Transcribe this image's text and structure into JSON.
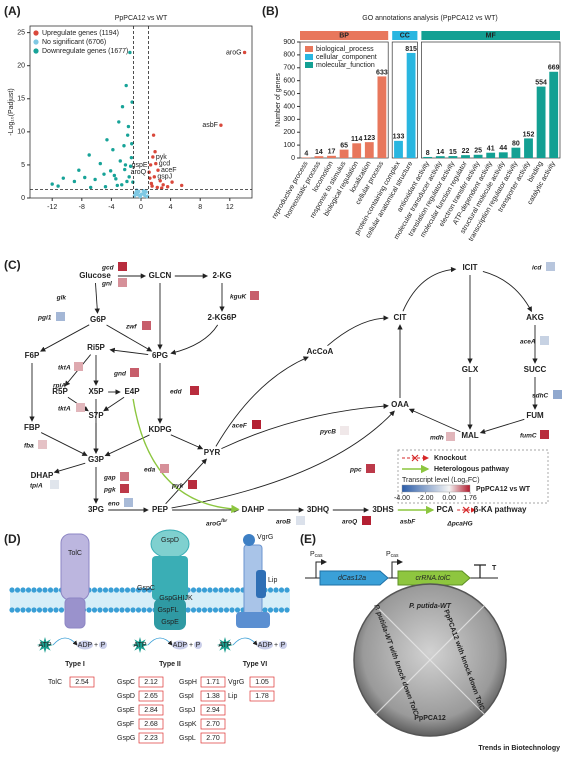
{
  "panel_labels": [
    "(A)",
    "(B)",
    "(C)",
    "(D)",
    "(E)"
  ],
  "chart_data": [
    {
      "type": "scatter",
      "title": "PpPCA12 vs WT",
      "y_label": "-Log₁₀(Padjust)",
      "xlim": [
        -15,
        15
      ],
      "xticks": [
        -12,
        -8,
        -4,
        0,
        4,
        8,
        12
      ],
      "ylim": [
        0,
        26
      ],
      "yticks": [
        0,
        5,
        10,
        15,
        20,
        25
      ],
      "thresholds": {
        "x": [
          -1,
          1
        ],
        "y": 1.3
      },
      "series": [
        {
          "name": "Upregulate genes (1194)",
          "color": "#d9483b",
          "x": [
            14,
            10.8,
            1.6,
            2,
            2.3,
            1.8,
            2.6,
            1.4,
            1.2,
            1.5,
            2.2,
            3,
            4.2,
            5.5,
            1.3,
            1.9,
            1.1,
            2.8,
            3.6,
            1.7
          ],
          "values": [
            22,
            11,
            6.2,
            5.2,
            4.2,
            3.2,
            2.6,
            2.2,
            3,
            1.8,
            1.6,
            2,
            2.4,
            1.9,
            5,
            7,
            3.9,
            1.5,
            1.7,
            9.5
          ],
          "labels": [
            "aroG",
            "asbF",
            "pyk",
            "gcd",
            "aceF",
            "gspJ",
            null,
            null,
            null,
            null,
            null,
            null,
            null,
            null,
            "gspE",
            null,
            "aroQ",
            null,
            null,
            null
          ]
        },
        {
          "name": "No significant (6706)",
          "color": "#7ec8e3",
          "x": [
            -0.9,
            -0.7,
            -0.5,
            -0.3,
            -0.1,
            0.1,
            0.3,
            0.5,
            0.7,
            0.9,
            -0.6,
            0.4,
            -0.2,
            0.6,
            0.0,
            -0.8,
            0.8,
            -0.4
          ],
          "values": [
            0.3,
            0.8,
            0.5,
            1.0,
            0.2,
            0.6,
            1.1,
            0.4,
            0.9,
            0.3,
            1.2,
            0.7,
            0.4,
            1.0,
            0.5,
            0.6,
            0.2,
            0.9
          ]
        },
        {
          "name": "Downregulate genes (1677)",
          "color": "#17a398",
          "x": [
            -12,
            -11.2,
            -10.5,
            -9,
            -8.4,
            -7.6,
            -7,
            -6.2,
            -5.5,
            -5,
            -4.6,
            -4.1,
            -3.8,
            -3.4,
            -3,
            -2.8,
            -2.5,
            -2.2,
            -2,
            -1.8,
            -1.6,
            -1.5,
            -1.3,
            -1.2,
            -1.1,
            -2.6,
            -3.2,
            -1.9,
            -1.4,
            -4.8,
            -6.8,
            -2.3,
            -1.7,
            -3.6,
            -1.25,
            -2.1
          ],
          "values": [
            2.1,
            1.8,
            3,
            2.5,
            4.2,
            3.1,
            6.5,
            2.8,
            5.2,
            3.6,
            8.8,
            4.1,
            7.3,
            2.9,
            11.5,
            5.6,
            13.8,
            4.3,
            17,
            9.5,
            3.2,
            22,
            6.1,
            14.5,
            2.4,
            2,
            1.9,
            2.5,
            4.8,
            1.7,
            1.6,
            7.9,
            10.8,
            3.4,
            8.2,
            5
          ]
        }
      ]
    },
    {
      "type": "bar",
      "title": "GO annotations analysis (PpPCA12 vs WT)",
      "y_label": "Number of genes",
      "ylim": [
        0,
        900
      ],
      "yticks": [
        0,
        100,
        200,
        300,
        400,
        500,
        600,
        700,
        800,
        900
      ],
      "series": [
        {
          "label": "BP",
          "name": "biological_process",
          "color": "#e8775c",
          "categories": [
            "reproductive process",
            "homeostatic process",
            "locomotion",
            "response to stimulus",
            "biological regulation",
            "localization",
            "cellular process"
          ],
          "values": [
            4,
            14,
            17,
            65,
            114,
            123,
            633
          ]
        },
        {
          "label": "CC",
          "name": "cellular_component",
          "color": "#29b6e0",
          "categories": [
            "protein-containing complex",
            "cellular anatomical structure"
          ],
          "values": [
            133,
            815
          ]
        },
        {
          "label": "MF",
          "name": "molecular_function",
          "color": "#13a093",
          "categories": [
            "antioxidant activity",
            "molecular transducer activity",
            "translation regulator activity",
            "molecular function regulator",
            "electron transfer activity",
            "ATP-dependent activity",
            "structural molecule activity",
            "transcription regulator activity",
            "transporter activity",
            "binding",
            "catalytic activity"
          ],
          "values": [
            8,
            14,
            15,
            22,
            25,
            41,
            44,
            80,
            152,
            554,
            669
          ]
        }
      ]
    }
  ],
  "pathway": {
    "metabolites": [
      "Glucose",
      "GLCN",
      "2-KG",
      "2-KG6P",
      "G6P",
      "6PG",
      "F6P",
      "Ri5P",
      "R5P",
      "X5P",
      "E4P",
      "S7P",
      "KDPG",
      "FBP",
      "G3P",
      "DHAP",
      "3PG",
      "PEP",
      "PYR",
      "AcCoA",
      "CIT",
      "ICIT",
      "AKG",
      "GLX",
      "SUCC",
      "OAA",
      "MAL",
      "FUM",
      "DAHP",
      "3DHQ",
      "3DHS",
      "PCA"
    ],
    "end_product": "β-KA pathway",
    "genes": [
      {
        "name": "gcd",
        "value": 1.6
      },
      {
        "name": "gnl",
        "value": 0.8
      },
      {
        "name": "zwf",
        "value": 1.2
      },
      {
        "name": "kguK",
        "value": 1.2
      },
      {
        "name": "pgi1",
        "value": -1.6
      },
      {
        "name": "tktA",
        "value": 0.6
      },
      {
        "name": "gnd",
        "value": 1.2
      },
      {
        "name": "tktA",
        "value": 0.5
      },
      {
        "name": "edd",
        "value": 1.6
      },
      {
        "name": "aceF",
        "value": 1.7
      },
      {
        "name": "fba",
        "value": 0.4
      },
      {
        "name": "tpiA",
        "value": -0.4
      },
      {
        "name": "eda",
        "value": 0.8
      },
      {
        "name": "gap",
        "value": 1.0
      },
      {
        "name": "pgk",
        "value": 1.5
      },
      {
        "name": "eno",
        "value": -1.5
      },
      {
        "name": "pyk",
        "value": 1.6
      },
      {
        "name": "pycB",
        "value": 0.1
      },
      {
        "name": "icd",
        "value": -1.2
      },
      {
        "name": "aceA",
        "value": -0.9
      },
      {
        "name": "sdhC",
        "value": -2
      },
      {
        "name": "mdh",
        "value": 0.5
      },
      {
        "name": "fumC",
        "value": 1.6
      },
      {
        "name": "ppc",
        "value": 1.5
      },
      {
        "name": "aroB",
        "value": -0.5
      },
      {
        "name": "aroQ",
        "value": 1.7
      }
    ],
    "unmeasured_genes": [
      "glk",
      "rpiA"
    ],
    "heterologous": [
      {
        "name": "aroG",
        "superscript": "fbr"
      },
      {
        "name": "asbF"
      }
    ],
    "knockout": "ΔpcaHG",
    "legend": {
      "knockout": "Knockout",
      "heterologous": "Heterologous pathway",
      "colorbar_title": "Transcript level (Log₂FC)",
      "comparison": "PpPCA12 vs WT",
      "clim": [
        -4,
        1.76
      ],
      "color_stops": [
        -4,
        0,
        1.76
      ],
      "colors": [
        "#2b5ca8",
        "#f4f4f4",
        "#b2182b"
      ],
      "ticks": [
        {
          "value": -4,
          "label": "-4.00"
        },
        {
          "value": -2,
          "label": "-2.00"
        },
        {
          "value": 0,
          "label": "0.00"
        },
        {
          "value": 1.76,
          "label": "1.76"
        }
      ]
    }
  },
  "secretion": {
    "systems": [
      {
        "name": "Type I",
        "components": [
          "TolC"
        ],
        "genes": [
          {
            "name": "TolC",
            "value": "2.54"
          }
        ]
      },
      {
        "name": "Type II",
        "components": [
          "GspD",
          "GspC",
          "GspGHIJK",
          "GspFL",
          "GspE"
        ],
        "genes": [
          {
            "name": "GspC",
            "value": "2.12"
          },
          {
            "name": "GspD",
            "value": "2.65"
          },
          {
            "name": "GspE",
            "value": "2.84"
          },
          {
            "name": "GspF",
            "value": "2.68"
          },
          {
            "name": "GspG",
            "value": "2.23"
          },
          {
            "name": "GspH",
            "value": "1.71"
          },
          {
            "name": "GspI",
            "value": "1.38"
          },
          {
            "name": "GspJ",
            "value": "2.94"
          },
          {
            "name": "GspK",
            "value": "2.70"
          },
          {
            "name": "GspL",
            "value": "2.70"
          }
        ]
      },
      {
        "name": "Type VI",
        "components": [
          "VgrG",
          "Lip"
        ],
        "genes": [
          {
            "name": "VgrG",
            "value": "1.05"
          },
          {
            "name": "Lip",
            "value": "1.78"
          }
        ]
      }
    ],
    "molecules": [
      "ATP",
      "ADP",
      "P"
    ]
  },
  "crispr": {
    "promoters": [
      {
        "text": "P",
        "sub": "cas"
      },
      {
        "text": "P",
        "sub": "cas"
      }
    ],
    "genes": [
      "dCas12a",
      "crRNA.tolC"
    ],
    "terminator": "T",
    "plate_labels": [
      "P. putida-WT",
      "P. putida-WT with knock down TolC",
      "PpPCA12 with knock down TolC",
      "PpPCA12"
    ]
  },
  "footer": "Trends in Biotechnology"
}
